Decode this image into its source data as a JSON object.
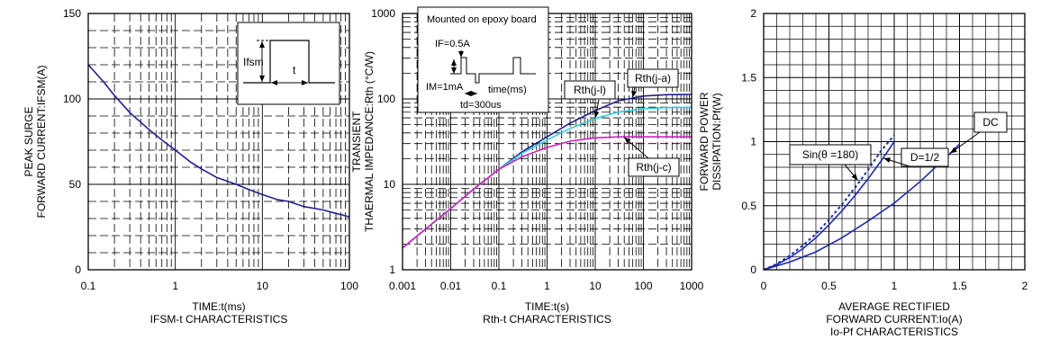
{
  "colors": {
    "frame": "#000000",
    "grid": "#000000",
    "navy": "#1f1f8f",
    "cyan": "#2fd0e0",
    "magenta": "#d020c0",
    "blue": "#1c2aa8"
  },
  "chart_data": [
    {
      "type": "line",
      "caption": "IFSM-t CHARACTERISTICS",
      "xlabel": "TIME:t(ms)",
      "ylabel": [
        "PEAK SURGE",
        "FORWARD CURRENT:IFSM(A)"
      ],
      "x_scale": "log",
      "xlim": [
        0.1,
        100
      ],
      "ylim": [
        0,
        150
      ],
      "x_ticks": [
        {
          "v": 0.1,
          "label": "0.1"
        },
        {
          "v": 1,
          "label": "1"
        },
        {
          "v": 10,
          "label": "10"
        },
        {
          "v": 100,
          "label": "100"
        }
      ],
      "y_ticks": [
        {
          "v": 0,
          "label": "0"
        },
        {
          "v": 50,
          "label": "50"
        },
        {
          "v": 100,
          "label": "100"
        },
        {
          "v": 150,
          "label": "150"
        }
      ],
      "grid": true,
      "series": [
        {
          "color": "#1f1f8f",
          "x": [
            0.1,
            0.15,
            0.2,
            0.3,
            0.5,
            0.7,
            1,
            1.5,
            2,
            3,
            5,
            7,
            10,
            15,
            20,
            30,
            50,
            70,
            100
          ],
          "y": [
            120,
            110,
            102,
            92,
            82,
            76,
            70,
            63,
            59,
            54,
            50,
            47,
            44,
            41,
            40,
            37,
            35,
            33,
            31
          ]
        }
      ],
      "inset": {
        "labels": [
          "Ifsm",
          "t"
        ]
      }
    },
    {
      "type": "line",
      "caption": "Rth-t CHARACTERISTICS",
      "xlabel": "TIME:t(s)",
      "ylabel": [
        "TRANSIENT",
        "THAERMAL IMPEDANCE:Rth (°C/W)"
      ],
      "x_scale": "log",
      "y_scale": "log",
      "xlim": [
        0.001,
        1000
      ],
      "ylim": [
        1,
        1000
      ],
      "x_ticks": [
        {
          "v": 0.001,
          "label": "0.001"
        },
        {
          "v": 0.01,
          "label": "0.01"
        },
        {
          "v": 0.1,
          "label": "0.1"
        },
        {
          "v": 1,
          "label": "1"
        },
        {
          "v": 10,
          "label": "10"
        },
        {
          "v": 100,
          "label": "100"
        },
        {
          "v": 1000,
          "label": "1000"
        }
      ],
      "y_ticks": [
        {
          "v": 1,
          "label": "1"
        },
        {
          "v": 10,
          "label": "10"
        },
        {
          "v": 100,
          "label": "100"
        },
        {
          "v": 1000,
          "label": "1000"
        }
      ],
      "grid": true,
      "series": [
        {
          "name": "Rth(j-a)",
          "color": "#1f1f8f",
          "x": [
            0.001,
            0.003,
            0.01,
            0.03,
            0.1,
            0.3,
            1,
            3,
            10,
            30,
            100,
            300,
            1000
          ],
          "y": [
            1.8,
            3.0,
            5.2,
            8.8,
            15,
            24,
            36,
            52,
            73,
            95,
            108,
            112,
            113
          ]
        },
        {
          "name": "Rth(j-l)",
          "color": "#2fd0e0",
          "x": [
            0.001,
            0.003,
            0.01,
            0.03,
            0.1,
            0.3,
            1,
            3,
            10,
            30,
            100,
            300,
            1000
          ],
          "y": [
            1.8,
            3.0,
            5.2,
            8.8,
            15,
            23,
            33,
            45,
            59,
            70,
            77,
            79,
            80
          ]
        },
        {
          "name": "Rth(j-c)",
          "color": "#d020c0",
          "x": [
            0.001,
            0.003,
            0.01,
            0.03,
            0.1,
            0.3,
            1,
            3,
            10,
            30,
            100,
            300,
            1000
          ],
          "y": [
            1.8,
            3.0,
            5.2,
            8.8,
            15,
            21,
            27,
            32,
            35,
            36,
            36,
            36,
            36
          ]
        }
      ],
      "inset": {
        "labels": [
          "Mounted on epoxy board",
          "IF=0.5A",
          "IM=1mA",
          "time(ms)",
          "td=300us"
        ]
      }
    },
    {
      "type": "line",
      "caption": "Io-Pf CHARACTERISTICS",
      "xlabel": [
        "AVERAGE RECTIFIED",
        "FORWARD CURRENT:Io(A)"
      ],
      "ylabel": [
        "FORWARD POWER",
        "DISSIPATION:Pf(W)"
      ],
      "xlim": [
        0,
        2
      ],
      "ylim": [
        0,
        2
      ],
      "x_ticks": [
        {
          "v": 0,
          "label": "0"
        },
        {
          "v": 0.5,
          "label": "0.5"
        },
        {
          "v": 1,
          "label": "1"
        },
        {
          "v": 1.5,
          "label": "1.5"
        },
        {
          "v": 2,
          "label": "2"
        }
      ],
      "y_ticks": [
        {
          "v": 0,
          "label": "0"
        },
        {
          "v": 0.5,
          "label": "0.5"
        },
        {
          "v": 1,
          "label": "1"
        },
        {
          "v": 1.5,
          "label": "1.5"
        },
        {
          "v": 2,
          "label": "2"
        }
      ],
      "grid": true,
      "series": [
        {
          "name": "Sin(θ=180)",
          "color": "#1c2aa8",
          "dashed": true,
          "x": [
            0,
            0.1,
            0.2,
            0.3,
            0.4,
            0.5,
            0.6,
            0.7,
            0.8,
            0.9,
            1.0
          ],
          "y": [
            0,
            0.045,
            0.11,
            0.19,
            0.28,
            0.39,
            0.51,
            0.64,
            0.78,
            0.93,
            1.05
          ]
        },
        {
          "name": "D=1/2",
          "color": "#1c2aa8",
          "x": [
            0,
            0.1,
            0.2,
            0.3,
            0.4,
            0.5,
            0.6,
            0.7,
            0.8,
            0.9,
            1.0
          ],
          "y": [
            0,
            0.04,
            0.095,
            0.165,
            0.25,
            0.35,
            0.46,
            0.58,
            0.71,
            0.85,
            1.0
          ]
        },
        {
          "name": "DC",
          "color": "#1c2aa8",
          "x": [
            0,
            0.2,
            0.4,
            0.6,
            0.8,
            1.0,
            1.2,
            1.4,
            1.5
          ],
          "y": [
            0,
            0.06,
            0.14,
            0.25,
            0.38,
            0.52,
            0.69,
            0.88,
            0.98
          ]
        }
      ]
    }
  ]
}
